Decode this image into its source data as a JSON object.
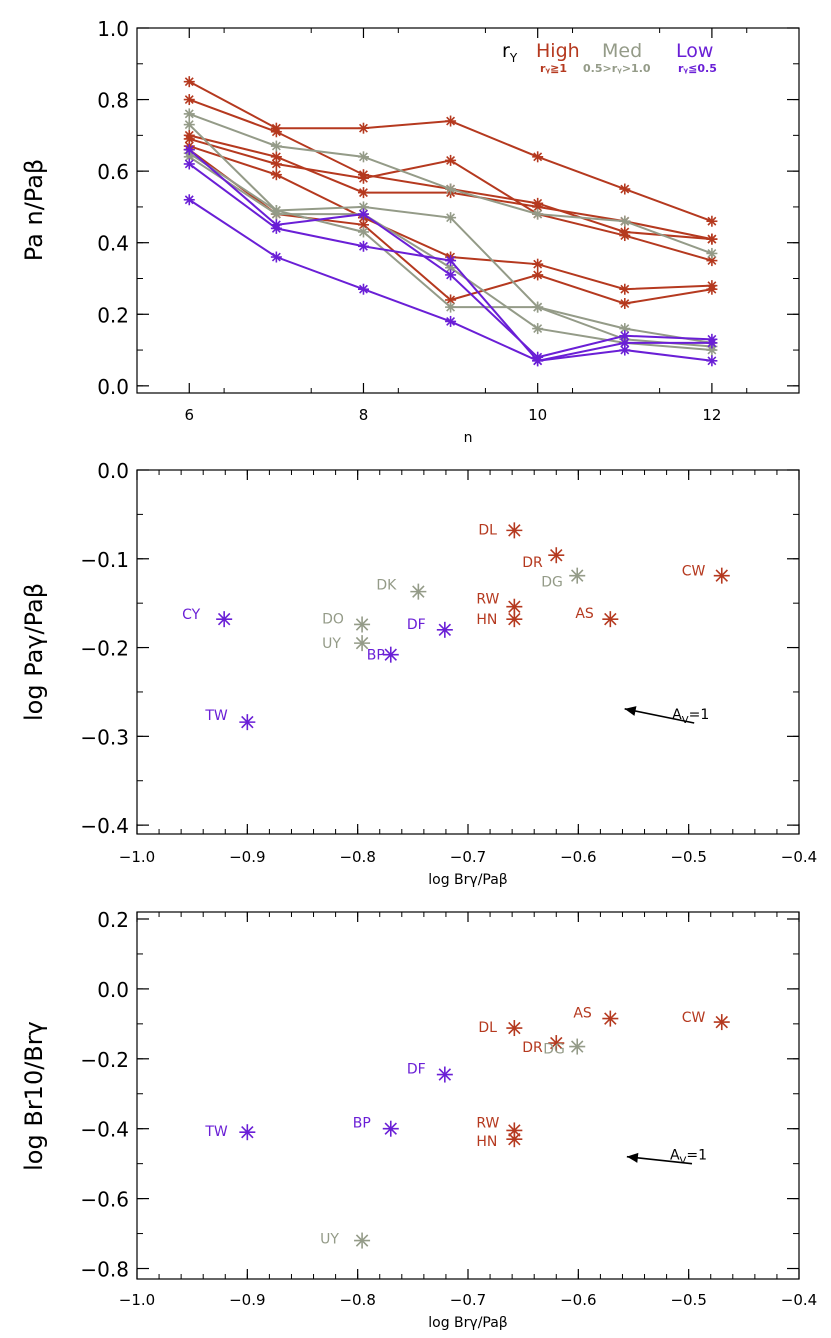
{
  "colors": {
    "high": "#b5391f",
    "med": "#949b88",
    "low": "#6a1fd6",
    "axis": "#000000"
  },
  "chart_data": [
    {
      "type": "line",
      "title": "",
      "xlabel": "n",
      "ylabel": "Pa n/Paβ",
      "xlim": [
        5.4,
        13
      ],
      "ylim": [
        -0.02,
        1.0
      ],
      "x_ticks": [
        6,
        8,
        10,
        12
      ],
      "x_tick_labels": [
        "6",
        "8",
        "10",
        "12"
      ],
      "y_ticks": [
        0.0,
        0.2,
        0.4,
        0.6,
        0.8,
        1.0
      ],
      "y_tick_labels": [
        "0.0",
        "0.2",
        "0.4",
        "0.6",
        "0.8",
        "1.0"
      ],
      "x": [
        6,
        7,
        8,
        9,
        10,
        11,
        12
      ],
      "legend": {
        "symbol": "r",
        "symbol_sub": "Y",
        "placement": "top-right",
        "entries": [
          {
            "group": "high",
            "label": "High",
            "sub": "rᵧ≧1"
          },
          {
            "group": "med",
            "label": "Med",
            "sub": "0.5>rᵧ>1.0"
          },
          {
            "group": "low",
            "label": "Low",
            "sub": "rᵧ≦0.5"
          }
        ]
      },
      "series": [
        {
          "group": "high",
          "values": [
            0.85,
            0.72,
            0.72,
            0.74,
            0.64,
            0.55,
            0.46
          ]
        },
        {
          "group": "high",
          "values": [
            0.8,
            0.71,
            0.59,
            0.55,
            0.51,
            0.43,
            0.41
          ]
        },
        {
          "group": "high",
          "values": [
            0.7,
            0.64,
            0.54,
            0.54,
            0.5,
            0.46,
            0.41
          ]
        },
        {
          "group": "high",
          "values": [
            0.69,
            0.62,
            0.58,
            0.63,
            0.48,
            0.42,
            0.35
          ]
        },
        {
          "group": "high",
          "values": [
            0.67,
            0.59,
            0.47,
            0.36,
            0.34,
            0.27,
            0.28
          ]
        },
        {
          "group": "high",
          "values": [
            0.66,
            0.48,
            0.45,
            0.24,
            0.31,
            0.23,
            0.27
          ]
        },
        {
          "group": "med",
          "values": [
            0.76,
            0.67,
            0.64,
            0.55,
            0.48,
            0.46,
            0.37
          ]
        },
        {
          "group": "med",
          "values": [
            0.73,
            0.49,
            0.5,
            0.47,
            0.22,
            0.16,
            0.12
          ]
        },
        {
          "group": "med",
          "values": [
            0.65,
            0.49,
            0.43,
            0.22,
            0.22,
            0.13,
            0.11
          ]
        },
        {
          "group": "med",
          "values": [
            0.64,
            0.48,
            0.48,
            0.33,
            0.16,
            0.12,
            0.1
          ]
        },
        {
          "group": "low",
          "values": [
            0.66,
            0.45,
            0.48,
            0.31,
            0.08,
            0.14,
            0.13
          ]
        },
        {
          "group": "low",
          "values": [
            0.62,
            0.44,
            0.39,
            0.35,
            0.07,
            0.1,
            0.07
          ]
        },
        {
          "group": "low",
          "values": [
            0.52,
            0.36,
            0.27,
            0.18,
            0.07,
            0.12,
            0.12
          ]
        }
      ]
    },
    {
      "type": "scatter",
      "xlabel": "log Brγ/Paβ",
      "ylabel": "log Paγ/Paβ",
      "xlim": [
        -1.0,
        -0.4
      ],
      "ylim": [
        -0.41,
        0.0
      ],
      "x_ticks": [
        -1.0,
        -0.9,
        -0.8,
        -0.7,
        -0.6,
        -0.5,
        -0.4
      ],
      "x_tick_labels": [
        "−1.0",
        "−0.9",
        "−0.8",
        "−0.7",
        "−0.6",
        "−0.5",
        "−0.4"
      ],
      "y_ticks": [
        0.0,
        -0.1,
        -0.2,
        -0.3,
        -0.4
      ],
      "y_tick_labels": [
        "0.0",
        "−0.1",
        "−0.2",
        "−0.3",
        "−0.4"
      ],
      "extinction_vector": {
        "label": "A",
        "label_sub": "V",
        "label_tail": "=1",
        "x0": -0.495,
        "y0": -0.285,
        "x1": -0.558,
        "y1": -0.269
      },
      "points": [
        {
          "label": "DL",
          "group": "high",
          "x": -0.658,
          "y": -0.068
        },
        {
          "label": "DR",
          "group": "high",
          "x": -0.62,
          "y": -0.096
        },
        {
          "label": "DG",
          "group": "med",
          "x": -0.601,
          "y": -0.119
        },
        {
          "label": "CW",
          "group": "high",
          "x": -0.47,
          "y": -0.119
        },
        {
          "label": "DK",
          "group": "med",
          "x": -0.745,
          "y": -0.137
        },
        {
          "label": "RW",
          "group": "high",
          "x": -0.658,
          "y": -0.154
        },
        {
          "label": "HN",
          "group": "high",
          "x": -0.658,
          "y": -0.168
        },
        {
          "label": "AS",
          "group": "high",
          "x": -0.571,
          "y": -0.168
        },
        {
          "label": "CY",
          "group": "low",
          "x": -0.921,
          "y": -0.168
        },
        {
          "label": "DO",
          "group": "med",
          "x": -0.796,
          "y": -0.174
        },
        {
          "label": "DF",
          "group": "low",
          "x": -0.721,
          "y": -0.18
        },
        {
          "label": "UY",
          "group": "med",
          "x": -0.796,
          "y": -0.195
        },
        {
          "label": "BP",
          "group": "low",
          "x": -0.77,
          "y": -0.208
        },
        {
          "label": "TW",
          "group": "low",
          "x": -0.9,
          "y": -0.284
        }
      ]
    },
    {
      "type": "scatter",
      "xlabel": "log Brγ/Paβ",
      "ylabel": "log Br10/Brγ",
      "xlim": [
        -1.0,
        -0.4
      ],
      "ylim": [
        -0.83,
        0.22
      ],
      "x_ticks": [
        -1.0,
        -0.9,
        -0.8,
        -0.7,
        -0.6,
        -0.5,
        -0.4
      ],
      "x_tick_labels": [
        "−1.0",
        "−0.9",
        "−0.8",
        "−0.7",
        "−0.6",
        "−0.5",
        "−0.4"
      ],
      "y_ticks": [
        0.2,
        0.0,
        -0.2,
        -0.4,
        -0.6,
        -0.8
      ],
      "y_tick_labels": [
        "0.2",
        "0.0",
        "−0.2",
        "−0.4",
        "−0.6",
        "−0.8"
      ],
      "extinction_vector": {
        "label": "A",
        "label_sub": "V",
        "label_tail": "=1",
        "x0": -0.497,
        "y0": -0.5,
        "x1": -0.556,
        "y1": -0.48
      },
      "points": [
        {
          "label": "AS",
          "group": "high",
          "x": -0.571,
          "y": -0.085
        },
        {
          "label": "CW",
          "group": "high",
          "x": -0.47,
          "y": -0.095
        },
        {
          "label": "DL",
          "group": "high",
          "x": -0.658,
          "y": -0.112
        },
        {
          "label": "DR",
          "group": "high",
          "x": -0.62,
          "y": -0.155
        },
        {
          "label": "DG",
          "group": "med",
          "x": -0.601,
          "y": -0.165
        },
        {
          "label": "DF",
          "group": "low",
          "x": -0.721,
          "y": -0.245
        },
        {
          "label": "BP",
          "group": "low",
          "x": -0.77,
          "y": -0.4
        },
        {
          "label": "RW",
          "group": "high",
          "x": -0.658,
          "y": -0.405
        },
        {
          "label": "TW",
          "group": "low",
          "x": -0.9,
          "y": -0.41
        },
        {
          "label": "HN",
          "group": "high",
          "x": -0.658,
          "y": -0.43
        },
        {
          "label": "UY",
          "group": "med",
          "x": -0.796,
          "y": -0.72
        }
      ]
    }
  ]
}
